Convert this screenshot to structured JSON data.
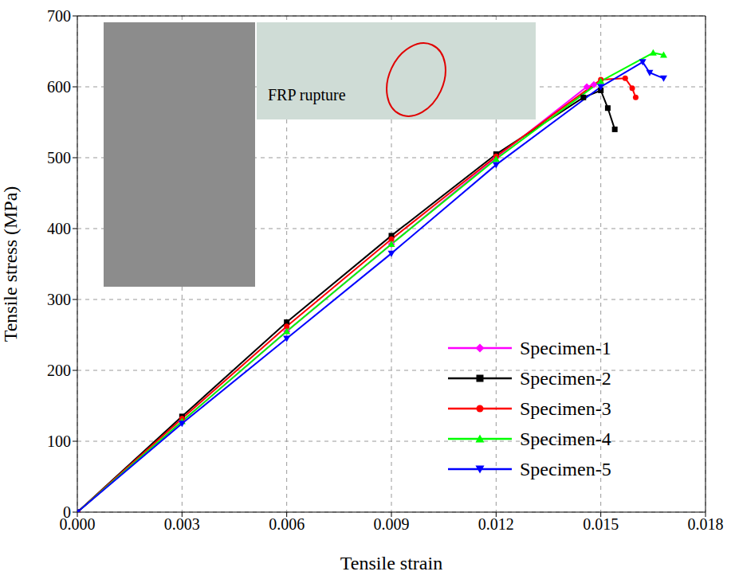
{
  "chart_data": {
    "type": "line",
    "x_label": "Tensile strain",
    "y_label": "Tensile stress (MPa)",
    "xlim": [
      0,
      0.018
    ],
    "xticks": [
      {
        "value": 0,
        "label": "0.000"
      },
      {
        "value": 0.003,
        "label": "0.003"
      },
      {
        "value": 0.006,
        "label": "0.006"
      },
      {
        "value": 0.009,
        "label": "0.009"
      },
      {
        "value": 0.012,
        "label": "0.012"
      },
      {
        "value": 0.015,
        "label": "0.015"
      },
      {
        "value": 0.018,
        "label": "0.018"
      }
    ],
    "ylim": [
      0,
      700
    ],
    "yticks": [
      0,
      100,
      200,
      300,
      400,
      500,
      600,
      700
    ],
    "grid": true,
    "legend": "lower right",
    "annotations": [
      "FRP rupture"
    ],
    "series": [
      {
        "name": "Specimen-1",
        "color": "#ff00ff",
        "marker": "diamond",
        "x": [
          0,
          0.003,
          0.006,
          0.009,
          0.012,
          0.0146,
          0.0148
        ],
        "values": [
          0,
          128,
          255,
          378,
          500,
          600,
          603
        ]
      },
      {
        "name": "Specimen-2",
        "color": "#000000",
        "marker": "square",
        "x": [
          0,
          0.003,
          0.006,
          0.009,
          0.012,
          0.0145,
          0.015,
          0.0152,
          0.0154
        ],
        "values": [
          0,
          135,
          268,
          390,
          505,
          585,
          595,
          570,
          540
        ]
      },
      {
        "name": "Specimen-3",
        "color": "#ff0000",
        "marker": "circle",
        "x": [
          0,
          0.003,
          0.006,
          0.009,
          0.012,
          0.015,
          0.0157,
          0.0159,
          0.016
        ],
        "values": [
          0,
          132,
          262,
          385,
          502,
          610,
          612,
          598,
          585
        ]
      },
      {
        "name": "Specimen-4",
        "color": "#00ff00",
        "marker": "triangle",
        "x": [
          0,
          0.003,
          0.006,
          0.009,
          0.012,
          0.015,
          0.0165,
          0.0168
        ],
        "values": [
          0,
          128,
          255,
          378,
          498,
          608,
          648,
          645
        ]
      },
      {
        "name": "Specimen-5",
        "color": "#0000ff",
        "marker": "triangle-down",
        "x": [
          0,
          0.003,
          0.006,
          0.009,
          0.012,
          0.015,
          0.0162,
          0.0164,
          0.0168
        ],
        "values": [
          0,
          125,
          245,
          365,
          490,
          600,
          635,
          620,
          612
        ]
      }
    ]
  }
}
